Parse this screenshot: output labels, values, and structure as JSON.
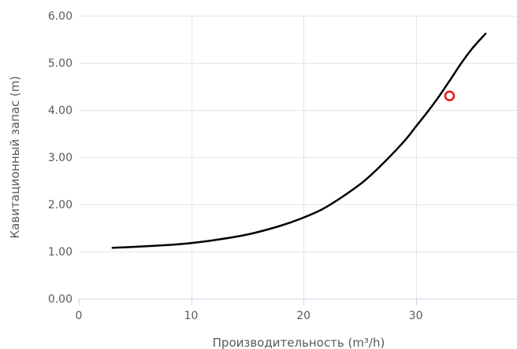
{
  "chart_data": {
    "type": "line",
    "xlabel": "Производительность (m³/h)",
    "ylabel": "Кавитационный запас (m)",
    "xlim": [
      0,
      39
    ],
    "ylim": [
      0,
      6
    ],
    "x_ticks": [
      0,
      10,
      20,
      30
    ],
    "y_ticks": [
      0,
      1,
      2,
      3,
      4,
      5,
      6
    ],
    "y_tick_labels": [
      "0.00",
      "1.00",
      "2.00",
      "3.00",
      "4.00",
      "5.00",
      "6.00"
    ],
    "grid": true,
    "series": [
      {
        "color": "#000000",
        "x": [
          3,
          5,
          8,
          10,
          12,
          15,
          18,
          20,
          22,
          25,
          27,
          29,
          30,
          31,
          32,
          33,
          34,
          35,
          36.2
        ],
        "y": [
          1.08,
          1.1,
          1.14,
          1.18,
          1.24,
          1.36,
          1.55,
          1.72,
          1.94,
          2.42,
          2.85,
          3.35,
          3.65,
          3.95,
          4.27,
          4.62,
          4.98,
          5.3,
          5.62
        ]
      }
    ],
    "highlight_point": {
      "x": 33,
      "y": 4.3,
      "color": "#e8151b"
    },
    "colors": {
      "grid": "#e6e6e6",
      "axis": "#ccd6eb",
      "text": "#5a5a5a"
    }
  }
}
